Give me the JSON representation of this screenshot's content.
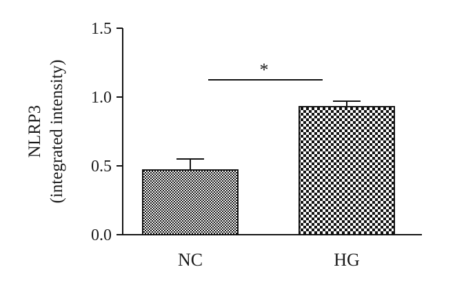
{
  "chart_data": {
    "type": "bar",
    "title": "",
    "xlabel": "",
    "ylabel": [
      "NLRP3",
      "(integrated intensity)"
    ],
    "categories": [
      "NC",
      "HG"
    ],
    "values": [
      0.47,
      0.93
    ],
    "errors": [
      0.08,
      0.04
    ],
    "ylim": [
      0,
      1.5
    ],
    "yticks": [
      0.0,
      0.5,
      1.0,
      1.5
    ],
    "ytick_labels": [
      "0.0",
      "0.5",
      "1.0",
      "1.5"
    ],
    "bar_pattern": [
      "fine-checker",
      "coarse-checker"
    ],
    "significance": {
      "between": [
        "NC",
        "HG"
      ],
      "label": "*"
    },
    "grid": false,
    "legend": "none"
  }
}
